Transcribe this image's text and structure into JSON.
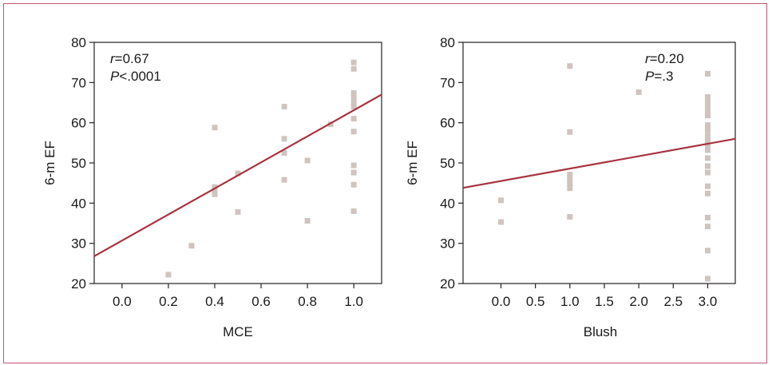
{
  "colors": {
    "frame": "#c4566d",
    "point": "#cfc4bf",
    "line": "#a8323e",
    "axis": "#222222"
  },
  "chart_data": [
    {
      "type": "scatter",
      "xlabel": "MCE",
      "ylabel": "6-m EF",
      "xlim": [
        -0.12,
        1.12
      ],
      "ylim": [
        20,
        80
      ],
      "xticks": [
        "0.0",
        "0.2",
        "0.4",
        "0.6",
        "0.8",
        "1.0"
      ],
      "yticks": [
        "20",
        "30",
        "40",
        "50",
        "60",
        "70",
        "80"
      ],
      "annotation": {
        "r": "r=0.67",
        "p": "P<.0001"
      },
      "regression": {
        "x": [
          -0.12,
          1.12
        ],
        "y": [
          26.8,
          67
        ]
      },
      "points": [
        [
          0.2,
          22.2
        ],
        [
          0.3,
          29.4
        ],
        [
          0.4,
          58.8
        ],
        [
          0.4,
          44
        ],
        [
          0.4,
          43
        ],
        [
          0.4,
          42.2
        ],
        [
          0.5,
          47.4
        ],
        [
          0.5,
          37.8
        ],
        [
          0.7,
          64
        ],
        [
          0.7,
          56
        ],
        [
          0.7,
          52.5
        ],
        [
          0.7,
          45.8
        ],
        [
          0.8,
          50.6
        ],
        [
          0.8,
          35.6
        ],
        [
          0.9,
          59.6
        ],
        [
          1.0,
          75
        ],
        [
          1.0,
          73.4
        ],
        [
          1.0,
          67.4
        ],
        [
          1.0,
          66.2
        ],
        [
          1.0,
          65
        ],
        [
          1.0,
          64
        ],
        [
          1.0,
          61
        ],
        [
          1.0,
          57.8
        ],
        [
          1.0,
          49.4
        ],
        [
          1.0,
          47.6
        ],
        [
          1.0,
          44.6
        ],
        [
          1.0,
          38
        ]
      ]
    },
    {
      "type": "scatter",
      "xlabel": "Blush",
      "ylabel": "6-m EF",
      "xlim": [
        -0.55,
        3.4
      ],
      "ylim": [
        20,
        80
      ],
      "xticks": [
        "0.0",
        "0.5",
        "1.0",
        "1.5",
        "2.0",
        "2.5",
        "3.0"
      ],
      "yticks": [
        "20",
        "30",
        "40",
        "50",
        "60",
        "70",
        "80"
      ],
      "annotation": {
        "r": "r=0.20",
        "p": "P=.3"
      },
      "regression": {
        "x": [
          -0.55,
          3.4
        ],
        "y": [
          43.8,
          56
        ]
      },
      "points": [
        [
          0.0,
          40.7
        ],
        [
          0.0,
          35.3
        ],
        [
          1.0,
          74.1
        ],
        [
          1.0,
          57.7
        ],
        [
          1.0,
          47.1
        ],
        [
          1.0,
          45.8
        ],
        [
          1.0,
          44.8
        ],
        [
          1.0,
          43.7
        ],
        [
          1.0,
          36.6
        ],
        [
          2.0,
          67.6
        ],
        [
          3.0,
          72.2
        ],
        [
          3.0,
          66.4
        ],
        [
          3.0,
          65.4
        ],
        [
          3.0,
          64.2
        ],
        [
          3.0,
          63
        ],
        [
          3.0,
          61.8
        ],
        [
          3.0,
          59.4
        ],
        [
          3.0,
          58.2
        ],
        [
          3.0,
          56.8
        ],
        [
          3.0,
          55.6
        ],
        [
          3.0,
          54.4
        ],
        [
          3.0,
          53.2
        ],
        [
          3.0,
          51.2
        ],
        [
          3.0,
          49.2
        ],
        [
          3.0,
          47.6
        ],
        [
          3.0,
          44.2
        ],
        [
          3.0,
          42.4
        ],
        [
          3.0,
          36.4
        ],
        [
          3.0,
          34.2
        ],
        [
          3.0,
          28.2
        ],
        [
          3.0,
          21.2
        ]
      ]
    }
  ]
}
